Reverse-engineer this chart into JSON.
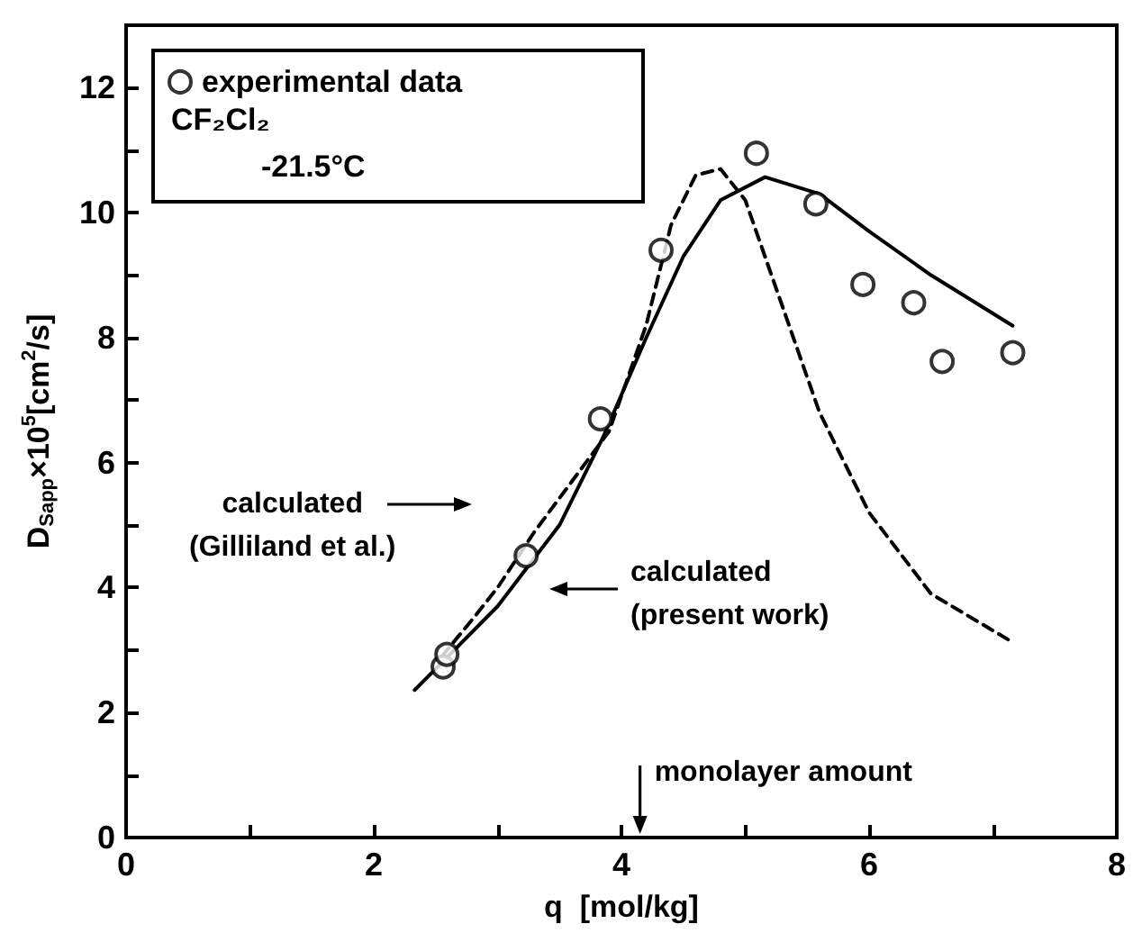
{
  "chart_data": {
    "type": "scatter",
    "xlabel": "q  [mol/kg]",
    "ylabel": "D$_{Sapp}$×10$^{5}$[cm$^{2}$/s]",
    "xlim": [
      0,
      8
    ],
    "ylim": [
      0,
      13
    ],
    "xticks": [
      0,
      {
        "value": 1,
        "label": null
      },
      2,
      {
        "value": 3,
        "label": null
      },
      4,
      {
        "value": 5,
        "label": null
      },
      6,
      {
        "value": 7,
        "label": null
      },
      8
    ],
    "yticks": [
      0,
      {
        "value": 1,
        "label": null
      },
      2,
      {
        "value": 3,
        "label": null
      },
      4,
      {
        "value": 5,
        "label": null
      },
      6,
      {
        "value": 7,
        "label": null
      },
      8,
      {
        "value": 9,
        "label": null
      },
      10,
      {
        "value": 11,
        "label": null
      },
      12
    ],
    "grid": false,
    "legend": "top left",
    "annotations": [
      "CF₂Cl₂",
      "-21.5°C"
    ],
    "ref_lines": [
      {
        "axis": "x",
        "value": 4.15,
        "label": "monolayer amount"
      }
    ],
    "series": [
      {
        "name": "experimental data",
        "marker": "circle",
        "color": "#000000",
        "x": [
          2.56,
          2.59,
          3.23,
          3.83,
          4.32,
          5.09,
          5.57,
          5.95,
          6.36,
          6.59,
          7.16
        ],
        "values": [
          2.73,
          2.93,
          4.51,
          6.7,
          9.4,
          10.95,
          10.14,
          8.85,
          8.56,
          7.62,
          7.76
        ]
      },
      {
        "name": "calculated (Gilliland et al.)",
        "type": "line",
        "line_style": "dashed",
        "marker": "none",
        "color": "#000000",
        "x": [
          2.55,
          2.8,
          3.0,
          3.3,
          3.6,
          3.9,
          4.2,
          4.4,
          4.6,
          4.8,
          5.0,
          5.3,
          5.6,
          6.0,
          6.5,
          7.13
        ],
        "values": [
          2.9,
          3.5,
          4.0,
          4.9,
          5.7,
          6.5,
          8.2,
          9.8,
          10.6,
          10.7,
          10.2,
          8.5,
          6.8,
          5.2,
          3.9,
          3.16
        ]
      },
      {
        "name": "calculated (present work)",
        "type": "line",
        "line_style": "solid",
        "marker": "none",
        "color": "#000000",
        "x": [
          2.33,
          2.6,
          3.0,
          3.5,
          3.85,
          4.2,
          4.5,
          4.8,
          5.16,
          5.6,
          6.0,
          6.5,
          7.16
        ],
        "values": [
          2.36,
          2.9,
          3.7,
          5.0,
          6.4,
          8.0,
          9.3,
          10.2,
          10.57,
          10.3,
          9.7,
          9.0,
          8.19
        ]
      }
    ]
  }
}
